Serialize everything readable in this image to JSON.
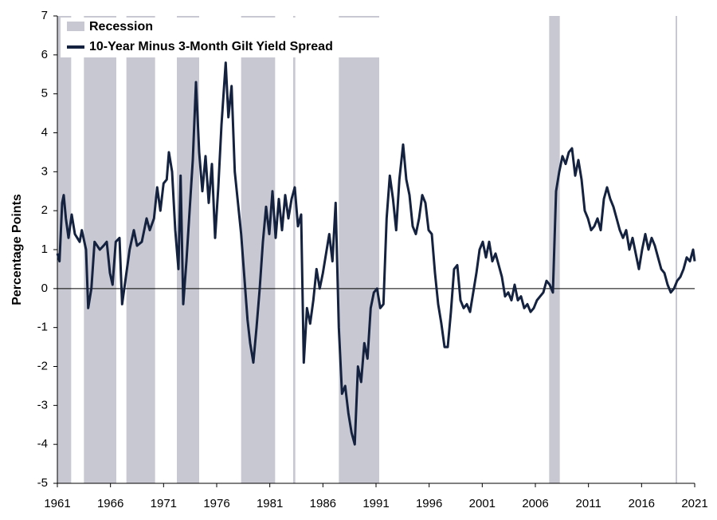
{
  "chart_data": {
    "type": "line",
    "y_label": "Percentage Points",
    "xlim": [
      1961,
      2021
    ],
    "xticks": [
      1961,
      1966,
      1971,
      1976,
      1981,
      1986,
      1991,
      1996,
      2001,
      2006,
      2011,
      2016,
      2021
    ],
    "ylim": [
      -5,
      7
    ],
    "yticks": [
      -5,
      -4,
      -3,
      -2,
      -1,
      0,
      1,
      2,
      3,
      4,
      5,
      6,
      7
    ],
    "legend": "upper left",
    "recession": {
      "name": "Recession",
      "color": "#c8c8d2",
      "periods": [
        [
          1961.0,
          1962.3
        ],
        [
          1963.5,
          1966.55
        ],
        [
          1967.5,
          1970.2
        ],
        [
          1972.25,
          1974.35
        ],
        [
          1978.3,
          1981.5
        ],
        [
          1983.2,
          1983.4
        ],
        [
          1987.5,
          1991.3
        ],
        [
          2007.3,
          2008.3
        ],
        [
          2019.2,
          2019.35
        ]
      ]
    },
    "series": [
      {
        "name": "10-Year Minus 3-Month Gilt Yield Spread",
        "color": "#14223f",
        "x": [
          1961.0,
          1961.2,
          1961.45,
          1961.6,
          1961.8,
          1962.05,
          1962.35,
          1962.65,
          1963.1,
          1963.3,
          1963.7,
          1963.9,
          1964.2,
          1964.5,
          1965.0,
          1965.35,
          1965.65,
          1965.95,
          1966.2,
          1966.5,
          1966.85,
          1967.1,
          1967.45,
          1967.8,
          1968.2,
          1968.5,
          1968.95,
          1969.4,
          1969.7,
          1970.1,
          1970.4,
          1970.7,
          1971.0,
          1971.3,
          1971.5,
          1971.8,
          1972.1,
          1972.4,
          1972.6,
          1972.85,
          1973.15,
          1973.45,
          1973.75,
          1974.05,
          1974.35,
          1974.65,
          1974.95,
          1975.25,
          1975.55,
          1975.85,
          1976.15,
          1976.45,
          1976.85,
          1977.1,
          1977.4,
          1977.7,
          1978.0,
          1978.3,
          1978.6,
          1978.9,
          1979.15,
          1979.45,
          1979.75,
          1980.05,
          1980.35,
          1980.65,
          1980.95,
          1981.25,
          1981.55,
          1981.85,
          1982.15,
          1982.45,
          1982.75,
          1983.05,
          1983.35,
          1983.65,
          1983.95,
          1984.2,
          1984.5,
          1984.8,
          1985.1,
          1985.4,
          1985.7,
          1986.0,
          1986.3,
          1986.6,
          1986.9,
          1987.2,
          1987.5,
          1987.8,
          1988.1,
          1988.4,
          1988.7,
          1989.0,
          1989.3,
          1989.6,
          1989.9,
          1990.2,
          1990.5,
          1990.8,
          1991.1,
          1991.4,
          1991.7,
          1992.0,
          1992.3,
          1992.6,
          1992.9,
          1993.2,
          1993.55,
          1993.85,
          1994.15,
          1994.45,
          1994.75,
          1995.05,
          1995.35,
          1995.65,
          1995.95,
          1996.25,
          1996.55,
          1996.85,
          1997.15,
          1997.45,
          1997.75,
          1998.05,
          1998.35,
          1998.65,
          1998.95,
          1999.25,
          1999.55,
          1999.85,
          2000.15,
          2000.45,
          2000.75,
          2001.05,
          2001.35,
          2001.65,
          2001.95,
          2002.25,
          2002.55,
          2002.85,
          2003.15,
          2003.45,
          2003.75,
          2004.05,
          2004.35,
          2004.65,
          2004.95,
          2005.25,
          2005.55,
          2005.85,
          2006.15,
          2006.45,
          2006.75,
          2007.05,
          2007.35,
          2007.65,
          2007.95,
          2008.25,
          2008.55,
          2008.85,
          2009.15,
          2009.45,
          2009.75,
          2010.05,
          2010.35,
          2010.65,
          2010.95,
          2011.25,
          2011.55,
          2011.85,
          2012.15,
          2012.45,
          2012.75,
          2013.05,
          2013.35,
          2013.65,
          2013.95,
          2014.25,
          2014.55,
          2014.85,
          2015.15,
          2015.45,
          2015.75,
          2016.05,
          2016.35,
          2016.65,
          2016.95,
          2017.25,
          2017.55,
          2017.85,
          2018.15,
          2018.45,
          2018.75,
          2019.05,
          2019.35,
          2019.65,
          2019.95,
          2020.25,
          2020.55,
          2020.85,
          2021.0
        ],
        "values": [
          0.9,
          0.7,
          2.2,
          2.4,
          1.8,
          1.3,
          1.9,
          1.4,
          1.2,
          1.5,
          1.0,
          -0.5,
          0.0,
          1.2,
          1.0,
          1.1,
          1.2,
          0.4,
          0.1,
          1.2,
          1.3,
          -0.4,
          0.3,
          1.0,
          1.5,
          1.1,
          1.2,
          1.8,
          1.5,
          1.8,
          2.6,
          2.0,
          2.7,
          2.8,
          3.5,
          3.0,
          1.5,
          0.5,
          2.9,
          -0.4,
          0.7,
          2.0,
          3.3,
          5.3,
          3.5,
          2.5,
          3.4,
          2.2,
          3.2,
          1.3,
          2.6,
          4.2,
          5.8,
          4.4,
          5.2,
          3.0,
          2.2,
          1.4,
          0.3,
          -0.8,
          -1.4,
          -1.9,
          -1.0,
          0.0,
          1.2,
          2.1,
          1.4,
          2.5,
          1.3,
          2.3,
          1.5,
          2.4,
          1.8,
          2.3,
          2.6,
          1.6,
          1.9,
          -1.9,
          -0.5,
          -0.9,
          -0.3,
          0.5,
          0.0,
          0.4,
          0.9,
          1.4,
          0.7,
          2.2,
          -1.0,
          -2.7,
          -2.5,
          -3.2,
          -3.7,
          -4.0,
          -2.0,
          -2.4,
          -1.4,
          -1.8,
          -0.5,
          -0.1,
          0.0,
          -0.5,
          -0.4,
          1.8,
          2.9,
          2.3,
          1.5,
          2.8,
          3.7,
          2.8,
          2.4,
          1.6,
          1.4,
          1.8,
          2.4,
          2.2,
          1.5,
          1.4,
          0.4,
          -0.4,
          -0.9,
          -1.5,
          -1.5,
          -0.6,
          0.5,
          0.6,
          -0.3,
          -0.5,
          -0.4,
          -0.6,
          -0.1,
          0.4,
          1.0,
          1.2,
          0.8,
          1.2,
          0.7,
          0.9,
          0.6,
          0.3,
          -0.2,
          -0.1,
          -0.3,
          0.1,
          -0.3,
          -0.2,
          -0.5,
          -0.4,
          -0.6,
          -0.5,
          -0.3,
          -0.2,
          -0.1,
          0.2,
          0.1,
          -0.1,
          2.5,
          3.0,
          3.4,
          3.2,
          3.5,
          3.6,
          2.9,
          3.3,
          2.8,
          2.0,
          1.8,
          1.5,
          1.6,
          1.8,
          1.5,
          2.3,
          2.6,
          2.3,
          2.1,
          1.8,
          1.5,
          1.3,
          1.5,
          1.0,
          1.3,
          0.9,
          0.5,
          1.0,
          1.4,
          1.0,
          1.3,
          1.1,
          0.8,
          0.5,
          0.4,
          0.1,
          -0.1,
          0.0,
          0.2,
          0.3,
          0.5,
          0.8,
          0.7,
          1.0,
          0.7
        ]
      }
    ]
  }
}
